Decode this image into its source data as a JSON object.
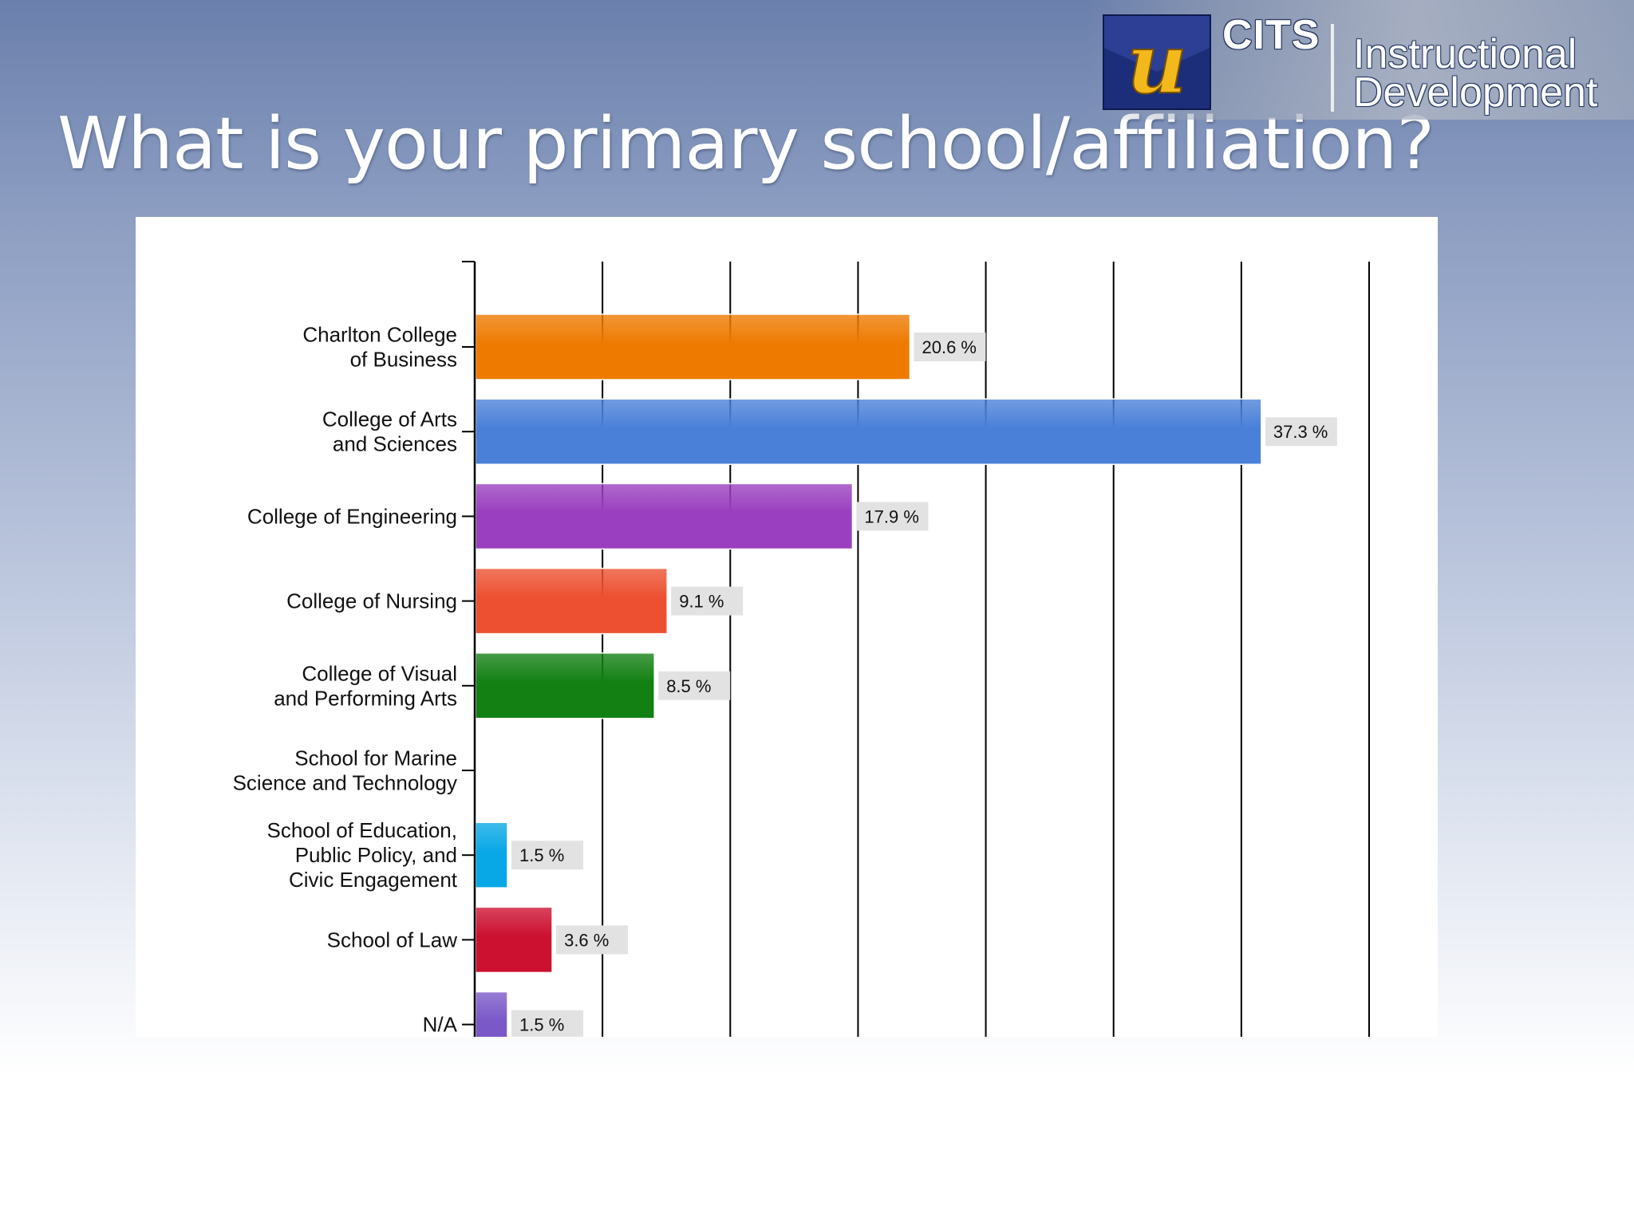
{
  "slide": {
    "title": "What is your primary school/affiliation?"
  },
  "header_banner": {
    "logo_letter": "u",
    "cits": "CITS",
    "dept_line1": "Instructional",
    "dept_line2": "Development"
  },
  "chart_data": {
    "type": "bar",
    "orientation": "horizontal",
    "categories": [
      [
        "Charlton College",
        "of Business"
      ],
      [
        "College of Arts",
        "and Sciences"
      ],
      [
        "College of Engineering"
      ],
      [
        "College of Nursing"
      ],
      [
        "College of Visual",
        "and Performing Arts"
      ],
      [
        "School for Marine",
        "Science and Technology"
      ],
      [
        "School of Education,",
        "Public Policy, and",
        "Civic Engagement"
      ],
      [
        "School of Law"
      ],
      [
        "N/A"
      ]
    ],
    "values": [
      68,
      123,
      59,
      30,
      28,
      0,
      5,
      12,
      5
    ],
    "value_labels": [
      "20.6 %",
      "37.3 %",
      "17.9 %",
      "9.1 %",
      "8.5 %",
      "",
      "1.5 %",
      "3.6 %",
      "1.5 %"
    ],
    "colors": [
      "#ee7a00",
      "#4a80d8",
      "#9a3fbf",
      "#ec5030",
      "#128012",
      "#999999",
      "#08a8e6",
      "#cc1030",
      "#7a58c8"
    ],
    "xlim": [
      0,
      140
    ],
    "x_ticks": [
      0,
      20,
      40,
      60,
      80,
      100,
      120,
      140
    ],
    "grid": true,
    "legend": "none"
  }
}
